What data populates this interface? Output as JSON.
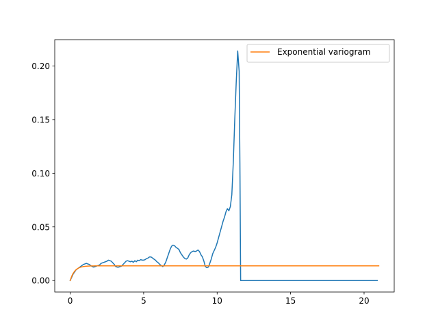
{
  "chart_data": {
    "type": "line",
    "title": "",
    "xlabel": "",
    "ylabel": "",
    "xlim": [
      -1.05,
      22.05
    ],
    "ylim": [
      -0.0107,
      0.2245
    ],
    "xticks": [
      0,
      5,
      10,
      15,
      20
    ],
    "yticks": [
      0.0,
      0.05,
      0.1,
      0.15,
      0.2
    ],
    "xtick_labels": [
      "0",
      "5",
      "10",
      "15",
      "20"
    ],
    "ytick_labels": [
      "0.00",
      "0.05",
      "0.10",
      "0.15",
      "0.20"
    ],
    "grid": false,
    "legend": {
      "placement": "top-right",
      "entries": [
        "Exponential variogram"
      ]
    },
    "series": [
      {
        "color": "#1f77b4",
        "x": [
          0,
          0.1,
          0.2,
          0.3,
          0.4,
          0.5,
          0.6,
          0.7,
          0.8,
          0.9,
          1.0,
          1.1,
          1.2,
          1.3,
          1.4,
          1.5,
          1.6,
          1.7,
          1.8,
          1.9,
          2.0,
          2.1,
          2.2,
          2.3,
          2.4,
          2.5,
          2.6,
          2.7,
          2.8,
          2.9,
          3.0,
          3.1,
          3.2,
          3.3,
          3.4,
          3.5,
          3.6,
          3.7,
          3.8,
          3.9,
          4.0,
          4.1,
          4.2,
          4.3,
          4.4,
          4.5,
          4.6,
          4.7,
          4.8,
          4.9,
          5.0,
          5.1,
          5.2,
          5.3,
          5.4,
          5.5,
          5.6,
          5.7,
          5.8,
          5.9,
          6.0,
          6.1,
          6.2,
          6.3,
          6.4,
          6.5,
          6.6,
          6.7,
          6.8,
          6.9,
          7.0,
          7.1,
          7.2,
          7.3,
          7.4,
          7.5,
          7.6,
          7.7,
          7.8,
          7.9,
          8.0,
          8.1,
          8.2,
          8.3,
          8.4,
          8.5,
          8.6,
          8.7,
          8.8,
          8.9,
          9.0,
          9.1,
          9.2,
          9.3,
          9.4,
          9.5,
          9.6,
          9.7,
          9.8,
          9.9,
          10.0,
          10.1,
          10.2,
          10.3,
          10.4,
          10.5,
          10.6,
          10.7,
          10.8,
          10.9,
          11.0,
          11.1,
          11.2,
          11.3,
          11.4,
          11.5,
          11.55,
          11.6,
          11.65,
          11.7,
          11.75,
          11.8,
          11.85,
          11.9,
          12.0,
          13.0,
          14.0,
          15.0,
          16.0,
          17.0,
          18.0,
          19.0,
          20.0,
          20.9
        ],
        "y": [
          0.0,
          0.003,
          0.006,
          0.008,
          0.01,
          0.011,
          0.012,
          0.013,
          0.014,
          0.015,
          0.0155,
          0.016,
          0.0155,
          0.015,
          0.014,
          0.013,
          0.0125,
          0.013,
          0.0135,
          0.014,
          0.0145,
          0.016,
          0.0165,
          0.017,
          0.0175,
          0.018,
          0.019,
          0.0185,
          0.018,
          0.0165,
          0.015,
          0.013,
          0.0125,
          0.0125,
          0.013,
          0.0135,
          0.015,
          0.0165,
          0.018,
          0.0185,
          0.018,
          0.0175,
          0.018,
          0.017,
          0.0185,
          0.0175,
          0.019,
          0.0185,
          0.0195,
          0.019,
          0.019,
          0.0195,
          0.0205,
          0.021,
          0.022,
          0.022,
          0.021,
          0.02,
          0.019,
          0.0175,
          0.0165,
          0.015,
          0.014,
          0.013,
          0.0145,
          0.017,
          0.021,
          0.025,
          0.029,
          0.032,
          0.033,
          0.0325,
          0.031,
          0.03,
          0.029,
          0.026,
          0.024,
          0.022,
          0.0205,
          0.02,
          0.021,
          0.024,
          0.026,
          0.027,
          0.0275,
          0.027,
          0.0275,
          0.0285,
          0.027,
          0.024,
          0.022,
          0.018,
          0.013,
          0.012,
          0.0125,
          0.016,
          0.02,
          0.025,
          0.028,
          0.031,
          0.035,
          0.04,
          0.045,
          0.05,
          0.055,
          0.059,
          0.064,
          0.067,
          0.065,
          0.069,
          0.08,
          0.11,
          0.15,
          0.185,
          0.214,
          0.195,
          0.11,
          0.0,
          0.0,
          0.0,
          0.0,
          0.0,
          0.0,
          0.0,
          0.0,
          0.0,
          0.0,
          0.0,
          0.0,
          0.0,
          0.0,
          0.0,
          0.0,
          0.0
        ]
      },
      {
        "name": "Exponential variogram",
        "color": "#ff7f0e",
        "model": "exponential",
        "nugget": 0,
        "sill": 0.0137,
        "range": 0.3,
        "x_range": [
          0,
          21
        ]
      }
    ]
  }
}
